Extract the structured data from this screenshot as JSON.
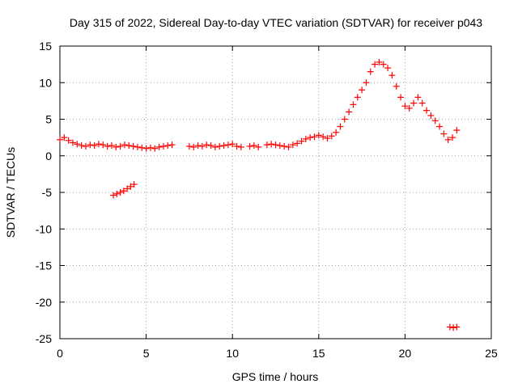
{
  "chart_data": {
    "type": "scatter",
    "title": "Day 315 of 2022, Sidereal Day-to-day VTEC variation (SDTVAR) for receiver p043",
    "xlabel": "GPS time / hours",
    "ylabel": "SDTVAR / TECUs",
    "xlim": [
      0,
      25
    ],
    "ylim": [
      -25,
      15
    ],
    "xticks": [
      0,
      5,
      10,
      15,
      20,
      25
    ],
    "yticks": [
      -25,
      -20,
      -15,
      -10,
      -5,
      0,
      5,
      10,
      15
    ],
    "xtick_labels": [
      "0",
      "5",
      "10",
      "15",
      "20",
      "25"
    ],
    "ytick_labels": [
      "-25",
      "-20",
      "-15",
      "-10",
      "-5",
      "0",
      "5",
      "10",
      "15"
    ],
    "grid": true,
    "marker": "+",
    "color": "#ff0000",
    "series": [
      {
        "name": "SDTVAR",
        "x": [
          0.0,
          0.25,
          0.5,
          0.75,
          1.0,
          1.25,
          1.5,
          1.75,
          2.0,
          2.25,
          2.5,
          2.75,
          3.0,
          3.25,
          3.5,
          3.75,
          4.0,
          4.25,
          4.5,
          4.75,
          5.0,
          5.25,
          5.5,
          5.75,
          6.0,
          6.25,
          6.5,
          7.5,
          7.75,
          8.0,
          8.25,
          8.5,
          8.75,
          9.0,
          9.25,
          9.5,
          9.75,
          10.0,
          10.25,
          10.5,
          11.0,
          11.25,
          11.5,
          12.0,
          12.25,
          12.5,
          12.75,
          13.0,
          13.25,
          13.5,
          13.75,
          14.0,
          14.25,
          14.5,
          14.75,
          15.0,
          15.25,
          15.5,
          15.75,
          16.0,
          16.25,
          16.5,
          16.75,
          17.0,
          17.25,
          17.5,
          17.75,
          18.0,
          18.25,
          18.5,
          18.75,
          19.0,
          19.25,
          19.5,
          19.75,
          20.0,
          20.25,
          20.5,
          20.75,
          21.0,
          21.25,
          21.5,
          21.75,
          22.0,
          22.25,
          22.5,
          22.75,
          23.0,
          3.1,
          3.3,
          3.5,
          3.7,
          3.9,
          4.1,
          4.3,
          22.6,
          22.8,
          23.0
        ],
        "y": [
          2.2,
          2.5,
          2.1,
          1.8,
          1.6,
          1.4,
          1.3,
          1.5,
          1.4,
          1.6,
          1.5,
          1.3,
          1.4,
          1.2,
          1.3,
          1.5,
          1.4,
          1.3,
          1.2,
          1.1,
          1.0,
          1.1,
          1.0,
          1.2,
          1.3,
          1.4,
          1.5,
          1.3,
          1.2,
          1.4,
          1.3,
          1.5,
          1.4,
          1.2,
          1.3,
          1.4,
          1.5,
          1.6,
          1.3,
          1.2,
          1.3,
          1.4,
          1.2,
          1.5,
          1.6,
          1.5,
          1.4,
          1.3,
          1.2,
          1.5,
          1.7,
          2.0,
          2.3,
          2.5,
          2.6,
          2.8,
          2.6,
          2.4,
          2.7,
          3.2,
          4.0,
          5.0,
          6.0,
          7.0,
          8.0,
          9.0,
          10.0,
          11.5,
          12.5,
          12.8,
          12.5,
          12.0,
          11.0,
          9.5,
          8.0,
          6.8,
          6.5,
          7.2,
          8.0,
          7.2,
          6.2,
          5.5,
          4.8,
          4.0,
          3.0,
          2.2,
          2.5,
          3.5,
          -5.4,
          -5.2,
          -5.0,
          -4.8,
          -4.5,
          -4.2,
          -3.9,
          -23.4,
          -23.5,
          -23.4
        ]
      }
    ]
  }
}
